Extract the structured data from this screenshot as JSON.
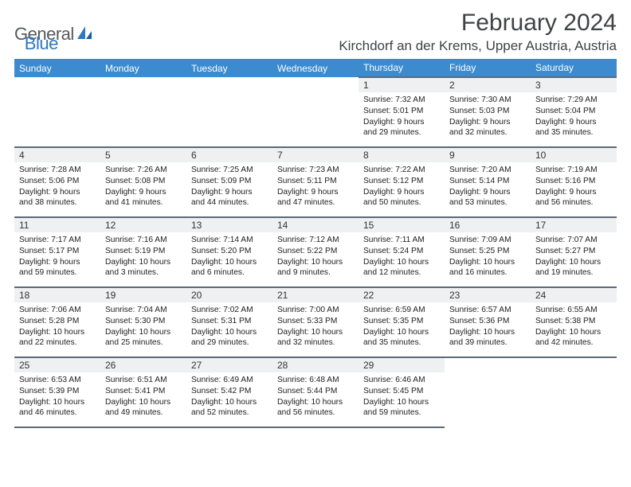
{
  "brand": {
    "name_a": "General",
    "name_b": "Blue"
  },
  "title": "February 2024",
  "location": "Kirchdorf an der Krems, Upper Austria, Austria",
  "colors": {
    "header_bg": "#3b8bce",
    "header_fg": "#ffffff",
    "rule": "#5b6a7a",
    "daynum_bg": "#eef0f1",
    "text": "#212121",
    "logo_gray": "#56595c",
    "logo_blue": "#2f78bf"
  },
  "weekdays": [
    "Sunday",
    "Monday",
    "Tuesday",
    "Wednesday",
    "Thursday",
    "Friday",
    "Saturday"
  ],
  "weeks": [
    [
      null,
      null,
      null,
      null,
      {
        "n": "1",
        "sunrise": "7:32 AM",
        "sunset": "5:01 PM",
        "daylight": "9 hours and 29 minutes."
      },
      {
        "n": "2",
        "sunrise": "7:30 AM",
        "sunset": "5:03 PM",
        "daylight": "9 hours and 32 minutes."
      },
      {
        "n": "3",
        "sunrise": "7:29 AM",
        "sunset": "5:04 PM",
        "daylight": "9 hours and 35 minutes."
      }
    ],
    [
      {
        "n": "4",
        "sunrise": "7:28 AM",
        "sunset": "5:06 PM",
        "daylight": "9 hours and 38 minutes."
      },
      {
        "n": "5",
        "sunrise": "7:26 AM",
        "sunset": "5:08 PM",
        "daylight": "9 hours and 41 minutes."
      },
      {
        "n": "6",
        "sunrise": "7:25 AM",
        "sunset": "5:09 PM",
        "daylight": "9 hours and 44 minutes."
      },
      {
        "n": "7",
        "sunrise": "7:23 AM",
        "sunset": "5:11 PM",
        "daylight": "9 hours and 47 minutes."
      },
      {
        "n": "8",
        "sunrise": "7:22 AM",
        "sunset": "5:12 PM",
        "daylight": "9 hours and 50 minutes."
      },
      {
        "n": "9",
        "sunrise": "7:20 AM",
        "sunset": "5:14 PM",
        "daylight": "9 hours and 53 minutes."
      },
      {
        "n": "10",
        "sunrise": "7:19 AM",
        "sunset": "5:16 PM",
        "daylight": "9 hours and 56 minutes."
      }
    ],
    [
      {
        "n": "11",
        "sunrise": "7:17 AM",
        "sunset": "5:17 PM",
        "daylight": "9 hours and 59 minutes."
      },
      {
        "n": "12",
        "sunrise": "7:16 AM",
        "sunset": "5:19 PM",
        "daylight": "10 hours and 3 minutes."
      },
      {
        "n": "13",
        "sunrise": "7:14 AM",
        "sunset": "5:20 PM",
        "daylight": "10 hours and 6 minutes."
      },
      {
        "n": "14",
        "sunrise": "7:12 AM",
        "sunset": "5:22 PM",
        "daylight": "10 hours and 9 minutes."
      },
      {
        "n": "15",
        "sunrise": "7:11 AM",
        "sunset": "5:24 PM",
        "daylight": "10 hours and 12 minutes."
      },
      {
        "n": "16",
        "sunrise": "7:09 AM",
        "sunset": "5:25 PM",
        "daylight": "10 hours and 16 minutes."
      },
      {
        "n": "17",
        "sunrise": "7:07 AM",
        "sunset": "5:27 PM",
        "daylight": "10 hours and 19 minutes."
      }
    ],
    [
      {
        "n": "18",
        "sunrise": "7:06 AM",
        "sunset": "5:28 PM",
        "daylight": "10 hours and 22 minutes."
      },
      {
        "n": "19",
        "sunrise": "7:04 AM",
        "sunset": "5:30 PM",
        "daylight": "10 hours and 25 minutes."
      },
      {
        "n": "20",
        "sunrise": "7:02 AM",
        "sunset": "5:31 PM",
        "daylight": "10 hours and 29 minutes."
      },
      {
        "n": "21",
        "sunrise": "7:00 AM",
        "sunset": "5:33 PM",
        "daylight": "10 hours and 32 minutes."
      },
      {
        "n": "22",
        "sunrise": "6:59 AM",
        "sunset": "5:35 PM",
        "daylight": "10 hours and 35 minutes."
      },
      {
        "n": "23",
        "sunrise": "6:57 AM",
        "sunset": "5:36 PM",
        "daylight": "10 hours and 39 minutes."
      },
      {
        "n": "24",
        "sunrise": "6:55 AM",
        "sunset": "5:38 PM",
        "daylight": "10 hours and 42 minutes."
      }
    ],
    [
      {
        "n": "25",
        "sunrise": "6:53 AM",
        "sunset": "5:39 PM",
        "daylight": "10 hours and 46 minutes."
      },
      {
        "n": "26",
        "sunrise": "6:51 AM",
        "sunset": "5:41 PM",
        "daylight": "10 hours and 49 minutes."
      },
      {
        "n": "27",
        "sunrise": "6:49 AM",
        "sunset": "5:42 PM",
        "daylight": "10 hours and 52 minutes."
      },
      {
        "n": "28",
        "sunrise": "6:48 AM",
        "sunset": "5:44 PM",
        "daylight": "10 hours and 56 minutes."
      },
      {
        "n": "29",
        "sunrise": "6:46 AM",
        "sunset": "5:45 PM",
        "daylight": "10 hours and 59 minutes."
      },
      null,
      null
    ]
  ],
  "labels": {
    "sunrise": "Sunrise:",
    "sunset": "Sunset:",
    "daylight": "Daylight:"
  }
}
